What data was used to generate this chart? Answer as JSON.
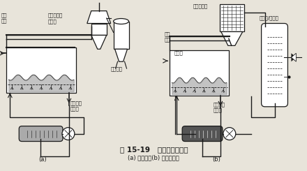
{
  "title": "图 15-19   流化床干燥装置",
  "subtitle": "(a) 开启式；(b) 封闭循环式",
  "label_a": "(a)",
  "label_b": "(b)",
  "bg_color": "#e8e4da",
  "fg_color": "#1a1a1a",
  "fig_width": 4.4,
  "fig_height": 2.45,
  "dpi": 100
}
